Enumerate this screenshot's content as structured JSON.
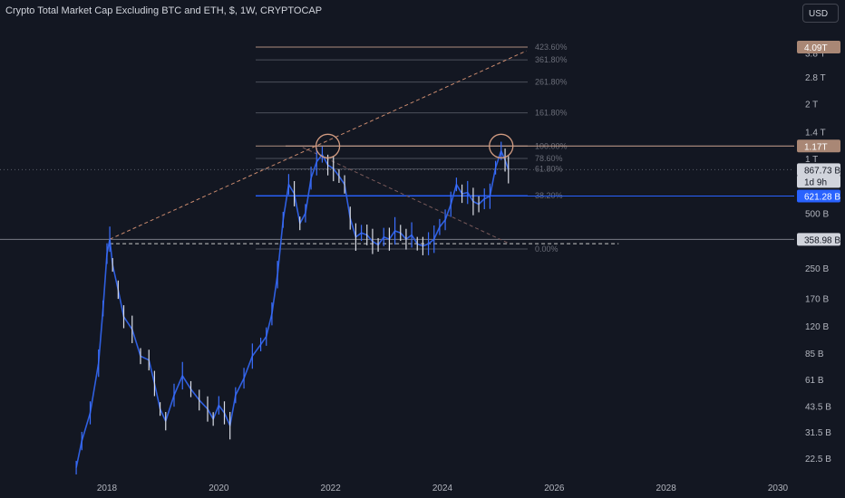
{
  "chart_data": {
    "type": "line",
    "title": "Crypto Total Market Cap Excluding BTC and ETH, $, 1W, CRYPTOCAP",
    "scale": "log",
    "x_range": [
      2017.4,
      2031.2
    ],
    "y_range": [
      19,
      5250
    ],
    "y_ticks": [
      {
        "label": "3.8 T",
        "value": 3800
      },
      {
        "label": "2.8 T",
        "value": 2800
      },
      {
        "label": "2 T",
        "value": 2000
      },
      {
        "label": "1.4 T",
        "value": 1400
      },
      {
        "label": "1 T",
        "value": 1000
      },
      {
        "label": "500 B",
        "value": 500
      },
      {
        "label": "250 B",
        "value": 250
      },
      {
        "label": "170 B",
        "value": 170
      },
      {
        "label": "120 B",
        "value": 120
      },
      {
        "label": "85 B",
        "value": 85
      },
      {
        "label": "61 B",
        "value": 61
      },
      {
        "label": "43.5 B",
        "value": 43.5
      },
      {
        "label": "31.5 B",
        "value": 31.5
      },
      {
        "label": "22.5 B",
        "value": 22.5
      }
    ],
    "x_ticks": [
      {
        "label": "2018",
        "value": 2018
      },
      {
        "label": "2020",
        "value": 2020
      },
      {
        "label": "2022",
        "value": 2022
      },
      {
        "label": "2024",
        "value": 2024
      },
      {
        "label": "2026",
        "value": 2026
      },
      {
        "label": "2028",
        "value": 2028
      },
      {
        "label": "2030",
        "value": 2030
      }
    ],
    "series": [
      {
        "points": [
          [
            2017.45,
            20
          ],
          [
            2017.55,
            28
          ],
          [
            2017.7,
            40
          ],
          [
            2017.85,
            75
          ],
          [
            2017.93,
            150
          ],
          [
            2018.0,
            300
          ],
          [
            2018.05,
            360
          ],
          [
            2018.1,
            260
          ],
          [
            2018.2,
            190
          ],
          [
            2018.3,
            135
          ],
          [
            2018.45,
            115
          ],
          [
            2018.6,
            82
          ],
          [
            2018.75,
            78
          ],
          [
            2018.85,
            58
          ],
          [
            2018.95,
            42
          ],
          [
            2019.05,
            36
          ],
          [
            2019.2,
            50
          ],
          [
            2019.35,
            64
          ],
          [
            2019.5,
            54
          ],
          [
            2019.65,
            47
          ],
          [
            2019.8,
            42
          ],
          [
            2019.9,
            37
          ],
          [
            2020.0,
            44
          ],
          [
            2020.1,
            40
          ],
          [
            2020.2,
            34
          ],
          [
            2020.3,
            50
          ],
          [
            2020.45,
            62
          ],
          [
            2020.6,
            82
          ],
          [
            2020.75,
            95
          ],
          [
            2020.85,
            105
          ],
          [
            2020.95,
            140
          ],
          [
            2021.05,
            230
          ],
          [
            2021.15,
            460
          ],
          [
            2021.25,
            720
          ],
          [
            2021.35,
            640
          ],
          [
            2021.45,
            440
          ],
          [
            2021.55,
            500
          ],
          [
            2021.65,
            780
          ],
          [
            2021.75,
            960
          ],
          [
            2021.85,
            1050
          ],
          [
            2021.95,
            920
          ],
          [
            2022.05,
            880
          ],
          [
            2022.15,
            800
          ],
          [
            2022.25,
            720
          ],
          [
            2022.35,
            470
          ],
          [
            2022.45,
            370
          ],
          [
            2022.55,
            390
          ],
          [
            2022.65,
            380
          ],
          [
            2022.75,
            350
          ],
          [
            2022.85,
            335
          ],
          [
            2022.95,
            370
          ],
          [
            2023.05,
            360
          ],
          [
            2023.15,
            400
          ],
          [
            2023.25,
            390
          ],
          [
            2023.35,
            360
          ],
          [
            2023.45,
            380
          ],
          [
            2023.55,
            340
          ],
          [
            2023.65,
            330
          ],
          [
            2023.75,
            340
          ],
          [
            2023.85,
            360
          ],
          [
            2023.95,
            420
          ],
          [
            2024.05,
            460
          ],
          [
            2024.15,
            560
          ],
          [
            2024.25,
            720
          ],
          [
            2024.35,
            640
          ],
          [
            2024.45,
            650
          ],
          [
            2024.55,
            580
          ],
          [
            2024.65,
            560
          ],
          [
            2024.75,
            600
          ],
          [
            2024.85,
            620
          ],
          [
            2024.95,
            890
          ],
          [
            2025.05,
            1100
          ],
          [
            2025.12,
            980
          ],
          [
            2025.18,
            868
          ]
        ]
      }
    ],
    "fibonacci": [
      {
        "label": "423.60%",
        "value": 4090,
        "color": "#c9a28f"
      },
      {
        "label": "361.80%",
        "value": 3480,
        "color": "#555964"
      },
      {
        "label": "261.80%",
        "value": 2630,
        "color": "#555964"
      },
      {
        "label": "161.80%",
        "value": 1780,
        "color": "#555964"
      },
      {
        "label": "100.00%",
        "value": 1170,
        "color": "#c9a28f"
      },
      {
        "label": "78.60%",
        "value": 1000,
        "color": "#555964"
      },
      {
        "label": "61.80%",
        "value": 875,
        "color": "#555964"
      },
      {
        "label": "38.20%",
        "value": 625,
        "color": "#2962ff"
      },
      {
        "label": "0.00%",
        "value": 318,
        "color": "#555964"
      }
    ],
    "price_badges": [
      {
        "label": "4.09T",
        "value": 4090,
        "bg": "#a98775",
        "fg": "#ffffff"
      },
      {
        "label": "1.17T",
        "value": 1170,
        "bg": "#a98775",
        "fg": "#ffffff"
      },
      {
        "label": "867.73 B",
        "value": 867.73,
        "bg": "#d1d4dc",
        "fg": "#131722"
      },
      {
        "label": "1d 9h",
        "value": 770,
        "bg": "#d1d4dc",
        "fg": "#131722"
      },
      {
        "label": "621.28 B",
        "value": 621.28,
        "bg": "#2962ff",
        "fg": "#ffffff"
      },
      {
        "label": "358.98 B",
        "value": 358.98,
        "bg": "#d1d4dc",
        "fg": "#131722"
      }
    ],
    "horizontal_lines": [
      {
        "value": 1170,
        "color": "#c9a28f"
      },
      {
        "value": 621.28,
        "color": "#2962ff"
      },
      {
        "value": 358.98,
        "color": "#787b86"
      },
      {
        "value": 867.73,
        "color": "#787b86",
        "dashed": true
      }
    ],
    "trendlines": [
      {
        "from": [
          2018.05,
          360
        ],
        "to": [
          2025.5,
          3900
        ],
        "style": "dashed",
        "color": "#c98a6e"
      },
      {
        "from": [
          2018.05,
          340
        ],
        "to": [
          2027.15,
          340
        ],
        "style": "dashed",
        "color": "#c9c9c9"
      },
      {
        "from": [
          2021.5,
          1150
        ],
        "to": [
          2025.2,
          340
        ],
        "style": "dashed",
        "color": "#7a5a5a"
      }
    ],
    "circles": [
      {
        "x": 2021.95,
        "y": 1170
      },
      {
        "x": 2025.05,
        "y": 1170
      }
    ],
    "grid": false
  },
  "header": {
    "title": "Crypto Total Market Cap Excluding BTC and ETH, $, 1W, CRYPTOCAP",
    "currency_button": "USD"
  }
}
